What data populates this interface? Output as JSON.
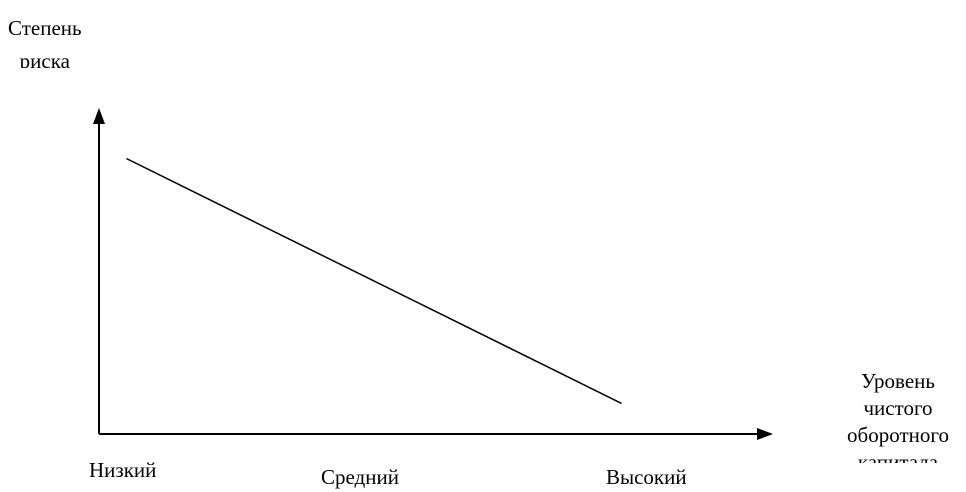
{
  "chart_data": {
    "type": "line",
    "ylabel_lines": [
      "Степень",
      "риска"
    ],
    "xlabel_lines": [
      "Уровень",
      "чистого",
      "оборотного",
      "капитала"
    ],
    "categories": [
      "Низкий",
      "Средний",
      "Высокий"
    ],
    "series": [
      {
        "x": [
          0.1,
          1.9
        ],
        "y": [
          0.9,
          0.1
        ]
      }
    ],
    "xlim": [
      0,
      2.4
    ],
    "ylim": [
      0,
      1
    ],
    "grid": false,
    "line_color": "#000000",
    "axis_color": "#000000"
  }
}
